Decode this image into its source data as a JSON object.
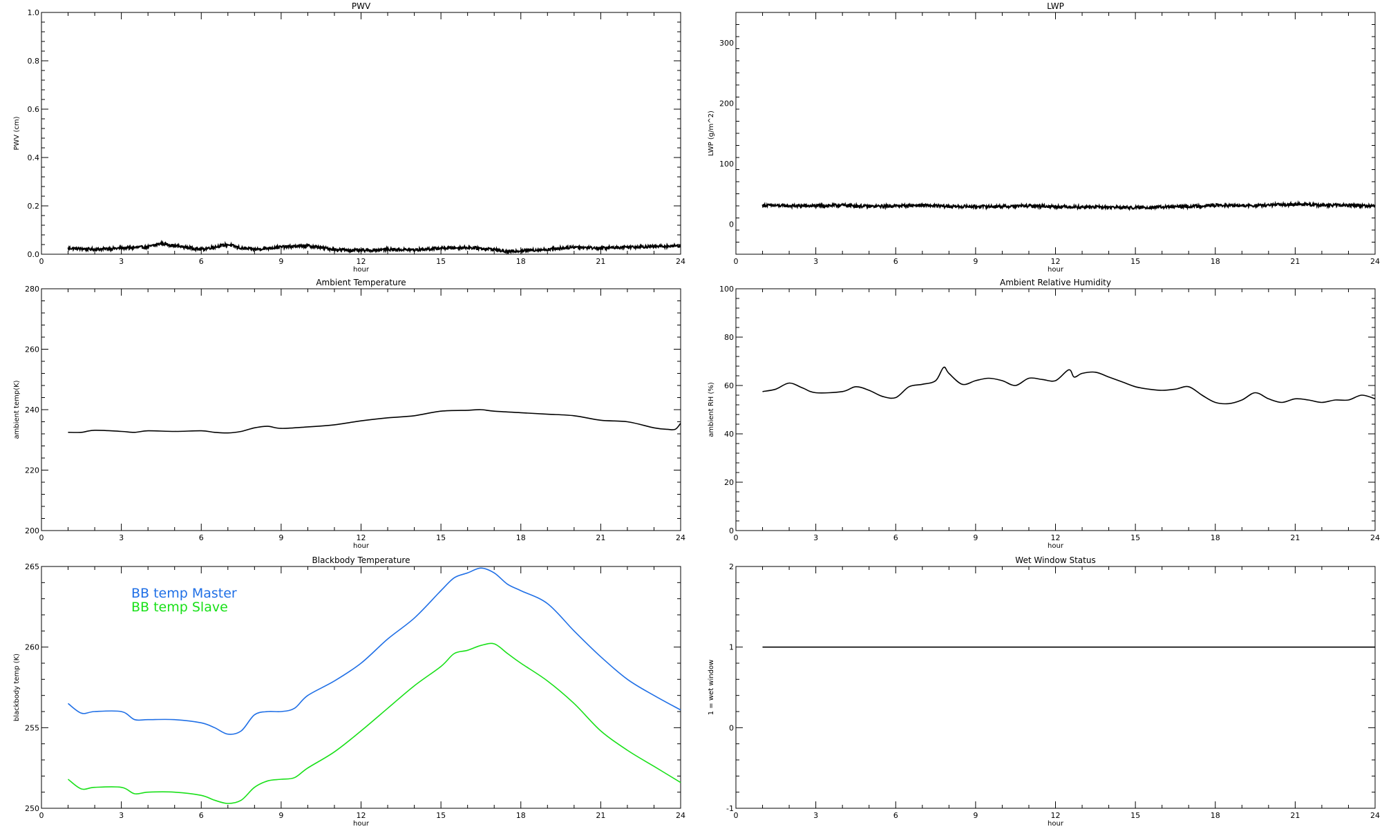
{
  "chart_data": [
    {
      "type": "line",
      "title": "PWV",
      "xlabel": "hour",
      "ylabel": "PWV (cm)",
      "xlim": [
        0,
        24
      ],
      "ylim": [
        0,
        1.0
      ],
      "xticks": [
        "0",
        "3",
        "6",
        "9",
        "12",
        "15",
        "18",
        "21",
        "24"
      ],
      "yticks": [
        "0.0",
        "0.2",
        "0.4",
        "0.6",
        "0.8",
        "1.0"
      ],
      "grid": false,
      "noisy": true,
      "series": [
        {
          "color": "#000000",
          "x": [
            1.0,
            2.0,
            3.0,
            4.0,
            4.5,
            5.0,
            6.0,
            7.0,
            7.5,
            8.0,
            9.0,
            10.0,
            11.0,
            12.0,
            13.0,
            14.0,
            15.0,
            16.0,
            17.0,
            17.5,
            18.0,
            19.0,
            20.0,
            21.0,
            22.0,
            23.0,
            24.0
          ],
          "y": [
            0.025,
            0.02,
            0.025,
            0.03,
            0.045,
            0.035,
            0.02,
            0.04,
            0.025,
            0.02,
            0.03,
            0.035,
            0.02,
            0.015,
            0.02,
            0.018,
            0.025,
            0.028,
            0.02,
            0.01,
            0.015,
            0.02,
            0.03,
            0.025,
            0.03,
            0.032,
            0.035
          ]
        }
      ]
    },
    {
      "type": "line",
      "title": "LWP",
      "xlabel": "hour",
      "ylabel": "LWP (g/m^2)",
      "xlim": [
        0,
        24
      ],
      "ylim": [
        -50,
        350
      ],
      "xticks": [
        "0",
        "3",
        "6",
        "9",
        "12",
        "15",
        "18",
        "21",
        "24"
      ],
      "yticks": [
        "0",
        "100",
        "200",
        "300"
      ],
      "grid": false,
      "noisy": true,
      "series": [
        {
          "color": "#000000",
          "x": [
            1.0,
            2.0,
            3.0,
            4.0,
            5.0,
            6.0,
            7.0,
            8.0,
            9.0,
            10.0,
            11.0,
            12.0,
            13.0,
            14.0,
            15.0,
            16.0,
            17.0,
            18.0,
            19.0,
            20.0,
            21.0,
            22.0,
            23.0,
            24.0
          ],
          "y": [
            31,
            30,
            30,
            31,
            29,
            30,
            31,
            29,
            29,
            29,
            30,
            29,
            28,
            28,
            27,
            28,
            29,
            31,
            30,
            31,
            33,
            31,
            31,
            30
          ]
        }
      ]
    },
    {
      "type": "line",
      "title": "Ambient Temperature",
      "xlabel": "hour",
      "ylabel": "ambient temp(K)",
      "xlim": [
        0,
        24
      ],
      "ylim": [
        200,
        280
      ],
      "xticks": [
        "0",
        "3",
        "6",
        "9",
        "12",
        "15",
        "18",
        "21",
        "24"
      ],
      "yticks": [
        "200",
        "220",
        "240",
        "260",
        "280"
      ],
      "grid": false,
      "series": [
        {
          "color": "#000000",
          "x": [
            1.0,
            1.5,
            2.0,
            3.0,
            3.5,
            4.0,
            5.0,
            6.0,
            6.5,
            7.0,
            7.5,
            8.0,
            8.5,
            9.0,
            10.0,
            11.0,
            12.0,
            13.0,
            14.0,
            15.0,
            16.0,
            16.5,
            17.0,
            18.0,
            19.0,
            20.0,
            21.0,
            22.0,
            23.0,
            23.5,
            23.8,
            24.0
          ],
          "y": [
            232.5,
            232.5,
            233.2,
            232.8,
            232.5,
            233.0,
            232.8,
            233.0,
            232.5,
            232.3,
            232.8,
            234.0,
            234.5,
            233.8,
            234.3,
            235.0,
            236.3,
            237.3,
            238.0,
            239.5,
            239.8,
            240.0,
            239.5,
            239.0,
            238.5,
            238.0,
            236.5,
            236.0,
            234.0,
            233.5,
            233.5,
            235.5
          ]
        }
      ]
    },
    {
      "type": "line",
      "title": "Ambient Relative Humidity",
      "xlabel": "hour",
      "ylabel": "ambient RH (%)",
      "xlim": [
        0,
        24
      ],
      "ylim": [
        0,
        100
      ],
      "xticks": [
        "0",
        "3",
        "6",
        "9",
        "12",
        "15",
        "18",
        "21",
        "24"
      ],
      "yticks": [
        "0",
        "20",
        "40",
        "60",
        "80",
        "100"
      ],
      "grid": false,
      "series": [
        {
          "color": "#000000",
          "x": [
            1.0,
            1.5,
            2.0,
            2.5,
            3.0,
            4.0,
            4.5,
            5.0,
            5.5,
            6.0,
            6.5,
            7.0,
            7.5,
            7.8,
            8.0,
            8.5,
            9.0,
            9.5,
            10.0,
            10.5,
            11.0,
            11.5,
            12.0,
            12.5,
            12.7,
            13.0,
            13.5,
            14.0,
            14.5,
            15.0,
            15.5,
            16.0,
            16.5,
            17.0,
            17.5,
            18.0,
            18.5,
            19.0,
            19.5,
            20.0,
            20.5,
            21.0,
            21.5,
            22.0,
            22.5,
            23.0,
            23.5,
            24.0
          ],
          "y": [
            57.5,
            58.5,
            61.0,
            59.0,
            57.0,
            57.5,
            59.5,
            58.0,
            55.5,
            55.0,
            59.5,
            60.5,
            62.0,
            67.5,
            65.0,
            60.5,
            62.0,
            63.0,
            62.0,
            60.0,
            63.0,
            62.5,
            62.0,
            66.5,
            63.5,
            65.0,
            65.5,
            63.5,
            61.5,
            59.5,
            58.5,
            58.0,
            58.5,
            59.5,
            56.0,
            53.0,
            52.5,
            54.0,
            57.0,
            54.5,
            53.0,
            54.5,
            54.0,
            53.0,
            54.0,
            54.0,
            56.0,
            54.5
          ]
        }
      ]
    },
    {
      "type": "line",
      "title": "Blackbody Temperature",
      "xlabel": "hour",
      "ylabel": "blackbody temp (K)",
      "xlim": [
        0,
        24
      ],
      "ylim": [
        250,
        265
      ],
      "xticks": [
        "0",
        "3",
        "6",
        "9",
        "12",
        "15",
        "18",
        "21",
        "24"
      ],
      "yticks": [
        "250",
        "255",
        "260",
        "265"
      ],
      "grid": false,
      "legend": "top-left",
      "series": [
        {
          "name": "BB temp Master",
          "color": "#1f6fe6",
          "x": [
            1.0,
            1.5,
            2.0,
            3.0,
            3.5,
            4.0,
            5.0,
            6.0,
            6.5,
            7.0,
            7.5,
            8.0,
            8.5,
            9.0,
            9.5,
            10.0,
            11.0,
            12.0,
            13.0,
            14.0,
            15.0,
            15.5,
            16.0,
            16.5,
            17.0,
            17.5,
            18.0,
            19.0,
            20.0,
            21.0,
            22.0,
            23.0,
            24.0
          ],
          "y": [
            256.5,
            255.9,
            256.0,
            256.0,
            255.5,
            255.5,
            255.5,
            255.3,
            255.0,
            254.6,
            254.8,
            255.8,
            256.0,
            256.0,
            256.2,
            257.0,
            257.9,
            259.0,
            260.5,
            261.8,
            263.5,
            264.3,
            264.6,
            264.9,
            264.6,
            263.9,
            263.5,
            262.7,
            261.0,
            259.4,
            258.0,
            257.0,
            256.1
          ]
        },
        {
          "name": "BB temp Slave",
          "color": "#18e018",
          "x": [
            1.0,
            1.5,
            2.0,
            3.0,
            3.5,
            4.0,
            5.0,
            6.0,
            6.5,
            7.0,
            7.5,
            8.0,
            8.5,
            9.0,
            9.5,
            10.0,
            11.0,
            12.0,
            13.0,
            14.0,
            15.0,
            15.5,
            16.0,
            16.5,
            17.0,
            17.5,
            18.0,
            19.0,
            20.0,
            21.0,
            22.0,
            23.0,
            24.0
          ],
          "y": [
            251.8,
            251.2,
            251.3,
            251.3,
            250.9,
            251.0,
            251.0,
            250.8,
            250.5,
            250.3,
            250.5,
            251.3,
            251.7,
            251.8,
            251.9,
            252.5,
            253.5,
            254.8,
            256.2,
            257.6,
            258.8,
            259.6,
            259.8,
            260.1,
            260.2,
            259.6,
            259.0,
            257.9,
            256.5,
            254.8,
            253.6,
            252.6,
            251.6
          ]
        }
      ]
    },
    {
      "type": "line",
      "title": "Wet Window Status",
      "xlabel": "hour",
      "ylabel": "1 = wet window",
      "xlim": [
        0,
        24
      ],
      "ylim": [
        -1,
        2
      ],
      "xticks": [
        "0",
        "3",
        "6",
        "9",
        "12",
        "15",
        "18",
        "21",
        "24"
      ],
      "yticks": [
        "-1",
        "0",
        "1",
        "2"
      ],
      "grid": false,
      "series": [
        {
          "color": "#000000",
          "x": [
            1.0,
            24.0
          ],
          "y": [
            1,
            1
          ]
        }
      ]
    }
  ]
}
